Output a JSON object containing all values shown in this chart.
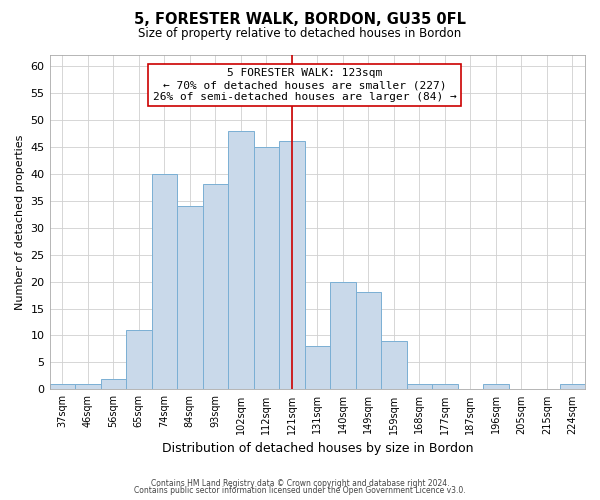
{
  "title": "5, FORESTER WALK, BORDON, GU35 0FL",
  "subtitle": "Size of property relative to detached houses in Bordon",
  "xlabel": "Distribution of detached houses by size in Bordon",
  "ylabel": "Number of detached properties",
  "bar_labels": [
    "37sqm",
    "46sqm",
    "56sqm",
    "65sqm",
    "74sqm",
    "84sqm",
    "93sqm",
    "102sqm",
    "112sqm",
    "121sqm",
    "131sqm",
    "140sqm",
    "149sqm",
    "159sqm",
    "168sqm",
    "177sqm",
    "187sqm",
    "196sqm",
    "205sqm",
    "215sqm",
    "224sqm"
  ],
  "bar_values": [
    1,
    1,
    2,
    11,
    40,
    34,
    38,
    48,
    45,
    46,
    8,
    20,
    18,
    9,
    1,
    1,
    0,
    1,
    0,
    0,
    1
  ],
  "bar_color": "#c9d9ea",
  "bar_edge_color": "#7aafd4",
  "ylim": [
    0,
    62
  ],
  "yticks": [
    0,
    5,
    10,
    15,
    20,
    25,
    30,
    35,
    40,
    45,
    50,
    55,
    60
  ],
  "vline_idx": 9,
  "vline_color": "#cc0000",
  "annotation_title": "5 FORESTER WALK: 123sqm",
  "annotation_line1": "← 70% of detached houses are smaller (227)",
  "annotation_line2": "26% of semi-detached houses are larger (84) →",
  "annotation_box_color": "#ffffff",
  "annotation_box_edge": "#cc0000",
  "footer1": "Contains HM Land Registry data © Crown copyright and database right 2024.",
  "footer2": "Contains public sector information licensed under the Open Government Licence v3.0.",
  "background_color": "#ffffff",
  "grid_color": "#d0d0d0"
}
